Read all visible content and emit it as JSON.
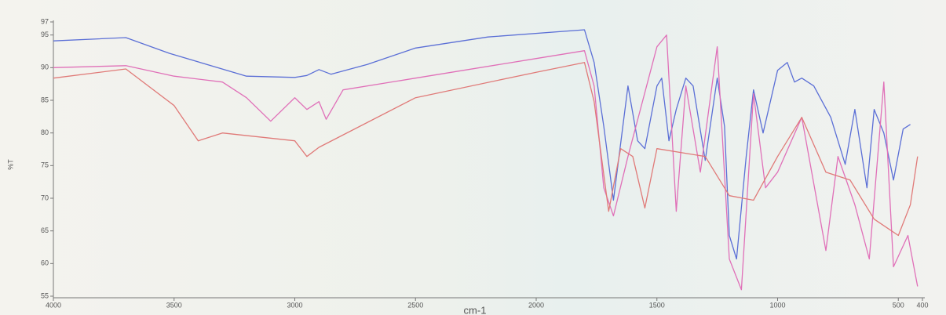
{
  "chart_data": {
    "type": "line",
    "x_label": "cm-1",
    "y_label": "%T",
    "xlim": [
      4000,
      400
    ],
    "ylim": [
      55,
      97
    ],
    "xticks": [
      4000,
      3500,
      3000,
      2500,
      2000,
      1500,
      1000,
      500,
      400
    ],
    "yticks": [
      55,
      60,
      65,
      70,
      75,
      80,
      85,
      90,
      95,
      97
    ],
    "series": [
      {
        "color": "#5b6fd6",
        "x": [
          4000,
          3700,
          3520,
          3200,
          3000,
          2950,
          2900,
          2850,
          2700,
          2500,
          2200,
          1800,
          1760,
          1720,
          1680,
          1620,
          1580,
          1550,
          1500,
          1480,
          1450,
          1420,
          1380,
          1350,
          1300,
          1250,
          1220,
          1200,
          1170,
          1130,
          1100,
          1060,
          1000,
          960,
          930,
          900,
          850,
          780,
          720,
          680,
          630,
          600,
          560,
          520,
          480,
          450
        ],
        "values": [
          94.1,
          94.6,
          92.2,
          88.7,
          88.5,
          88.8,
          89.7,
          89,
          90.5,
          93,
          94.7,
          95.8,
          90.8,
          81,
          69.7,
          87.2,
          78.8,
          77.6,
          87.2,
          88.4,
          78.8,
          83.6,
          88.4,
          87.2,
          75.8,
          88.4,
          81,
          64.3,
          60.7,
          76.4,
          86.6,
          80,
          89.6,
          90.8,
          87.8,
          88.4,
          87.2,
          82.4,
          75.2,
          83.6,
          71.6,
          83.6,
          80,
          72.8,
          80.6,
          81.3
        ]
      },
      {
        "color": "#e070b8",
        "x": [
          4000,
          3700,
          3500,
          3300,
          3200,
          3100,
          3000,
          2950,
          2900,
          2870,
          2800,
          2500,
          2000,
          1800,
          1760,
          1720,
          1680,
          1620,
          1500,
          1460,
          1420,
          1380,
          1320,
          1250,
          1200,
          1150,
          1100,
          1050,
          1000,
          900,
          800,
          750,
          680,
          620,
          560,
          520,
          460,
          420
        ],
        "values": [
          90,
          90.3,
          88.7,
          87.8,
          85.4,
          81.8,
          85.4,
          83.6,
          84.8,
          82.1,
          86.6,
          88.4,
          91.4,
          92.6,
          87.2,
          71.6,
          67.3,
          76.4,
          93.2,
          95,
          68,
          87.2,
          74,
          93.2,
          60.7,
          56,
          86,
          71.6,
          74,
          82.4,
          62,
          76.4,
          69,
          60.7,
          87.8,
          59.5,
          64.3,
          56.5
        ]
      },
      {
        "color": "#e07a78",
        "x": [
          4000,
          3700,
          3500,
          3400,
          3300,
          3000,
          2950,
          2900,
          2500,
          2000,
          1800,
          1760,
          1700,
          1650,
          1600,
          1550,
          1500,
          1300,
          1200,
          1100,
          1000,
          900,
          800,
          700,
          600,
          500,
          450,
          420
        ],
        "values": [
          88.4,
          89.8,
          84.2,
          78.8,
          80,
          78.8,
          76.4,
          77.8,
          85.4,
          89.3,
          90.8,
          84.8,
          68,
          77.6,
          76.4,
          68.5,
          77.6,
          76.4,
          70.4,
          69.7,
          76.4,
          82.4,
          74,
          72.8,
          66.8,
          64.3,
          69,
          76.4
        ]
      }
    ]
  }
}
